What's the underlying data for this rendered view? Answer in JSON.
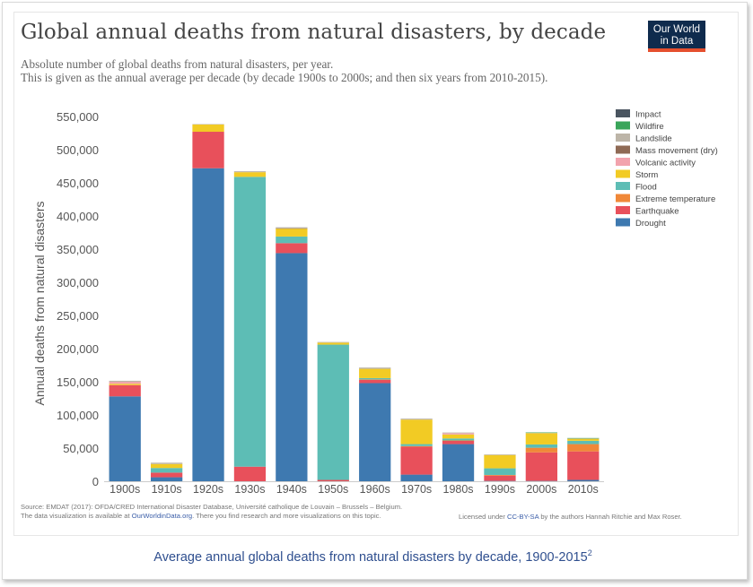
{
  "title": "Global annual deaths from natural disasters, by decade",
  "subtitle_1": "Absolute number of global deaths from natural disasters, per year.",
  "subtitle_2": "This is given as the annual average per decade (by decade 1900s to 2000s; and then six years from 2010-2015).",
  "logo": {
    "line1": "Our World",
    "line2": "in Data"
  },
  "source": {
    "line1": "Source: EMDAT (2017): OFDA/CRED International Disaster Database, Université catholique de Louvain – Brussels – Belgium.",
    "line2_prefix": "The data visualization is available at ",
    "line2_link": "OurWorldinData.org",
    "line2_suffix": ". There you find research and more visualizations on this topic."
  },
  "license": {
    "prefix": "Licensed under ",
    "link": "CC-BY-SA",
    "suffix": " by the authors Hannah Ritchie and Max Roser."
  },
  "caption": {
    "text": "Average annual global deaths from natural disasters by decade, 1900-2015",
    "footnote": "2"
  },
  "colors": {
    "Impact": "#4a5560",
    "Wildfire": "#3aa55a",
    "Landslide": "#bdb5a8",
    "Mass movement (dry)": "#8f6a55",
    "Volcanic activity": "#f2a3ad",
    "Storm": "#f2cb24",
    "Flood": "#5dbdb5",
    "Extreme temperature": "#f08838",
    "Earthquake": "#e8505b",
    "Drought": "#3e79b0"
  },
  "chart_data": {
    "type": "bar",
    "stacked": true,
    "ylabel": "Annual deaths from natural disasters",
    "ylim": [
      0,
      550000
    ],
    "yticks": [
      0,
      50000,
      100000,
      150000,
      200000,
      250000,
      300000,
      350000,
      400000,
      450000,
      500000,
      550000
    ],
    "ytick_labels": [
      "0",
      "50,000",
      "100,000",
      "150,000",
      "200,000",
      "250,000",
      "300,000",
      "350,000",
      "400,000",
      "450,000",
      "500,000",
      "550,000"
    ],
    "legend_position": "right",
    "grid": false,
    "legend": [
      "Impact",
      "Wildfire",
      "Landslide",
      "Mass movement (dry)",
      "Volcanic activity",
      "Storm",
      "Flood",
      "Extreme temperature",
      "Earthquake",
      "Drought"
    ],
    "categories": [
      "1900s",
      "1910s",
      "1920s",
      "1930s",
      "1940s",
      "1950s",
      "1960s",
      "1970s",
      "1980s",
      "1990s",
      "2000s",
      "2010s"
    ],
    "series": [
      {
        "name": "Drought",
        "values": [
          128000,
          6000,
          472000,
          0,
          344000,
          0,
          148000,
          10000,
          56000,
          500,
          500,
          2000
        ]
      },
      {
        "name": "Earthquake",
        "values": [
          17000,
          7000,
          55000,
          22000,
          15000,
          2000,
          5000,
          42000,
          5000,
          8000,
          43000,
          43000
        ]
      },
      {
        "name": "Extreme temperature",
        "values": [
          0,
          0,
          0,
          0,
          0,
          0,
          500,
          1000,
          500,
          1000,
          7000,
          11000
        ]
      },
      {
        "name": "Flood",
        "values": [
          0,
          7000,
          0,
          437000,
          10000,
          204000,
          2000,
          3000,
          3000,
          10000,
          5000,
          5000
        ]
      },
      {
        "name": "Storm",
        "values": [
          2000,
          6000,
          11000,
          7000,
          12000,
          3000,
          14000,
          37000,
          6000,
          20000,
          17000,
          3000
        ]
      },
      {
        "name": "Volcanic activity",
        "values": [
          3000,
          0,
          0,
          0,
          0,
          0,
          0,
          0,
          2000,
          0,
          0,
          0
        ]
      },
      {
        "name": "Mass movement (dry)",
        "values": [
          0,
          0,
          0,
          0,
          500,
          0,
          0,
          0,
          0,
          0,
          0,
          0
        ]
      },
      {
        "name": "Landslide",
        "values": [
          1500,
          2000,
          500,
          1500,
          1500,
          1000,
          2000,
          1500,
          1000,
          1000,
          1000,
          1000
        ]
      },
      {
        "name": "Wildfire",
        "values": [
          0,
          0,
          0,
          0,
          0,
          0,
          0,
          0,
          0,
          0,
          100,
          100
        ]
      },
      {
        "name": "Impact",
        "values": [
          0,
          0,
          0,
          0,
          0,
          0,
          0,
          0,
          0,
          0,
          0,
          0
        ]
      }
    ]
  }
}
